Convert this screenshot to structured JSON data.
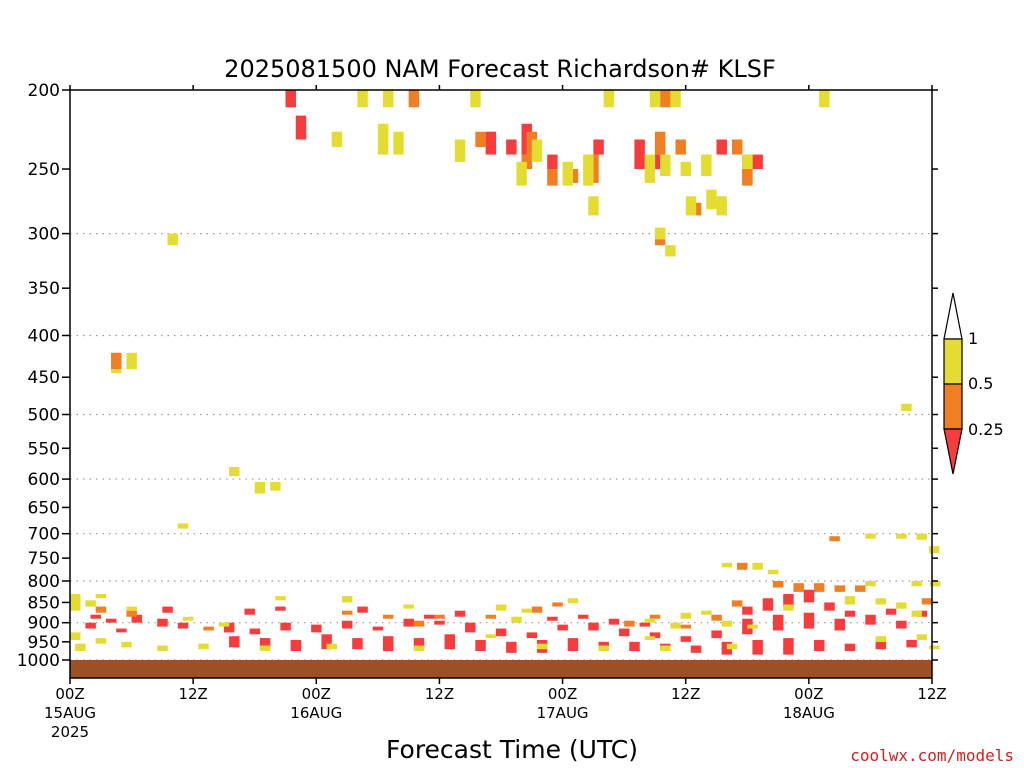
{
  "chart_data": {
    "type": "heatmap",
    "title": "2025081500 NAM Forecast Richardson# KLSF",
    "xlabel": "Forecast Time (UTC)",
    "ylabel": "",
    "xlim_hours": [
      0,
      84
    ],
    "ylim": [
      1000,
      200
    ],
    "y_ticks": [
      200,
      250,
      300,
      350,
      400,
      450,
      500,
      550,
      600,
      650,
      700,
      750,
      800,
      850,
      900,
      950,
      1000
    ],
    "x_ticks": [
      {
        "hour": 0,
        "lines": [
          "00Z",
          "15AUG",
          "2025"
        ]
      },
      {
        "hour": 12,
        "lines": [
          "12Z"
        ]
      },
      {
        "hour": 24,
        "lines": [
          "00Z",
          "16AUG"
        ]
      },
      {
        "hour": 36,
        "lines": [
          "12Z"
        ]
      },
      {
        "hour": 48,
        "lines": [
          "00Z",
          "17AUG"
        ]
      },
      {
        "hour": 60,
        "lines": [
          "12Z"
        ]
      },
      {
        "hour": 72,
        "lines": [
          "00Z",
          "18AUG"
        ]
      },
      {
        "hour": 84,
        "lines": [
          "12Z"
        ]
      }
    ],
    "dotted_gridlines_hpa": [
      300,
      400,
      500,
      600,
      700,
      800,
      900,
      1000
    ],
    "legend": {
      "placement": "right",
      "levels": [
        "0.25",
        "0.5",
        "1"
      ],
      "colors": {
        "lt_025": "#f63c3c",
        "025_05": "#f07e22",
        "05_1": "#e5dc32"
      }
    },
    "ground_color": "#9b5123",
    "series": [
      {
        "range": "< 0.25",
        "color": "#f63c3c",
        "cells": [
          [
            21.5,
            200,
            210
          ],
          [
            22.5,
            215,
            230
          ],
          [
            44.5,
            220,
            240
          ],
          [
            41,
            225,
            240
          ],
          [
            43,
            230,
            240
          ],
          [
            47,
            240,
            250
          ],
          [
            51.5,
            230,
            240
          ],
          [
            55.5,
            230,
            250
          ],
          [
            57.5,
            240,
            250
          ],
          [
            63.5,
            230,
            240
          ],
          [
            67,
            240,
            250
          ],
          [
            9.5,
            860,
            875
          ],
          [
            2.5,
            880,
            890
          ],
          [
            4,
            890,
            900
          ],
          [
            6.5,
            880,
            900
          ],
          [
            2,
            900,
            915
          ],
          [
            5,
            915,
            925
          ],
          [
            9,
            890,
            910
          ],
          [
            11,
            900,
            915
          ],
          [
            15.5,
            900,
            925
          ],
          [
            16,
            935,
            965
          ],
          [
            19,
            940,
            970
          ],
          [
            22,
            945,
            975
          ],
          [
            25,
            930,
            970
          ],
          [
            28,
            940,
            970
          ],
          [
            31,
            935,
            975
          ],
          [
            34,
            940,
            970
          ],
          [
            37,
            930,
            970
          ],
          [
            40,
            945,
            975
          ],
          [
            43,
            950,
            980
          ],
          [
            46,
            945,
            980
          ],
          [
            49,
            940,
            975
          ],
          [
            52,
            950,
            975
          ],
          [
            55,
            950,
            975
          ],
          [
            58,
            955,
            975
          ],
          [
            61,
            960,
            980
          ],
          [
            64,
            950,
            985
          ],
          [
            67,
            945,
            985
          ],
          [
            70,
            940,
            985
          ],
          [
            73,
            945,
            975
          ],
          [
            76,
            955,
            975
          ],
          [
            79,
            950,
            970
          ],
          [
            82,
            945,
            965
          ],
          [
            18,
            915,
            930
          ],
          [
            21,
            900,
            920
          ],
          [
            24,
            905,
            925
          ],
          [
            27,
            895,
            915
          ],
          [
            30,
            910,
            920
          ],
          [
            33,
            890,
            910
          ],
          [
            36,
            895,
            905
          ],
          [
            39,
            900,
            925
          ],
          [
            42,
            915,
            935
          ],
          [
            45,
            925,
            940
          ],
          [
            48,
            905,
            920
          ],
          [
            51,
            900,
            920
          ],
          [
            54,
            915,
            935
          ],
          [
            57,
            925,
            940
          ],
          [
            60,
            935,
            950
          ],
          [
            63,
            920,
            940
          ],
          [
            66,
            890,
            930
          ],
          [
            69,
            880,
            920
          ],
          [
            72,
            875,
            915
          ],
          [
            75,
            890,
            920
          ],
          [
            78,
            880,
            905
          ],
          [
            81,
            895,
            915
          ],
          [
            83,
            870,
            885
          ],
          [
            68,
            840,
            870
          ],
          [
            70,
            830,
            860
          ],
          [
            72,
            820,
            850
          ],
          [
            66,
            860,
            880
          ],
          [
            74,
            850,
            870
          ],
          [
            76,
            870,
            885
          ],
          [
            80,
            865,
            880
          ],
          [
            17.5,
            865,
            880
          ],
          [
            20.5,
            860,
            870
          ],
          [
            28.5,
            860,
            875
          ],
          [
            35,
            880,
            890
          ],
          [
            38,
            870,
            885
          ],
          [
            47,
            885,
            895
          ],
          [
            50,
            880,
            890
          ],
          [
            53,
            890,
            905
          ],
          [
            56,
            900,
            910
          ]
        ]
      },
      {
        "range": "0.25 – 0.5",
        "color": "#f07e22",
        "cells": [
          [
            33.5,
            200,
            210
          ],
          [
            58,
            200,
            210
          ],
          [
            57.5,
            225,
            240
          ],
          [
            59.5,
            230,
            240
          ],
          [
            40,
            225,
            235
          ],
          [
            45,
            225,
            240
          ],
          [
            44.5,
            240,
            250
          ],
          [
            49,
            250,
            260
          ],
          [
            47,
            250,
            262
          ],
          [
            51,
            240,
            260
          ],
          [
            65,
            230,
            240
          ],
          [
            66,
            240,
            260
          ],
          [
            66,
            250,
            262
          ],
          [
            61,
            275,
            285
          ],
          [
            57.5,
            300,
            310
          ],
          [
            4.5,
            420,
            440
          ],
          [
            74.5,
            705,
            715
          ],
          [
            65.5,
            760,
            775
          ],
          [
            69,
            800,
            815
          ],
          [
            71,
            805,
            825
          ],
          [
            73,
            805,
            825
          ],
          [
            75,
            810,
            825
          ],
          [
            77,
            810,
            825
          ],
          [
            83.5,
            840,
            855
          ],
          [
            63,
            880,
            895
          ],
          [
            41,
            880,
            890
          ],
          [
            45.5,
            860,
            875
          ],
          [
            36,
            880,
            890
          ],
          [
            34,
            895,
            910
          ],
          [
            54.5,
            895,
            910
          ],
          [
            57,
            880,
            890
          ],
          [
            60,
            905,
            915
          ],
          [
            47.5,
            850,
            860
          ],
          [
            65,
            845,
            860
          ],
          [
            6,
            870,
            885
          ],
          [
            3,
            860,
            875
          ],
          [
            13.5,
            910,
            920
          ],
          [
            27,
            870,
            880
          ],
          [
            31,
            880,
            890
          ]
        ]
      },
      {
        "range": "0.5 – 1",
        "color": "#e5dc32",
        "cells": [
          [
            28.5,
            200,
            210
          ],
          [
            31,
            200,
            210
          ],
          [
            39.5,
            200,
            210
          ],
          [
            52.5,
            200,
            210
          ],
          [
            57,
            200,
            210
          ],
          [
            59,
            200,
            210
          ],
          [
            73.5,
            200,
            210
          ],
          [
            26,
            225,
            235
          ],
          [
            30.5,
            220,
            240
          ],
          [
            32,
            225,
            240
          ],
          [
            45.5,
            230,
            245
          ],
          [
            38,
            230,
            245
          ],
          [
            44,
            245,
            262
          ],
          [
            48.5,
            245,
            262
          ],
          [
            50.5,
            240,
            262
          ],
          [
            56.5,
            240,
            260
          ],
          [
            58,
            240,
            255
          ],
          [
            60,
            245,
            255
          ],
          [
            62,
            240,
            255
          ],
          [
            66,
            240,
            250
          ],
          [
            51,
            270,
            285
          ],
          [
            60.5,
            270,
            285
          ],
          [
            62.5,
            265,
            280
          ],
          [
            63.5,
            270,
            285
          ],
          [
            10,
            300,
            310
          ],
          [
            57.5,
            295,
            305
          ],
          [
            58.5,
            310,
            320
          ],
          [
            6,
            420,
            440
          ],
          [
            4.5,
            440,
            445
          ],
          [
            81.5,
            485,
            495
          ],
          [
            16,
            580,
            595
          ],
          [
            18.5,
            605,
            625
          ],
          [
            20,
            605,
            620
          ],
          [
            11,
            680,
            690
          ],
          [
            78,
            700,
            710
          ],
          [
            81,
            700,
            710
          ],
          [
            83,
            700,
            712
          ],
          [
            84.2,
            725,
            740
          ],
          [
            64,
            760,
            770
          ],
          [
            67,
            760,
            775
          ],
          [
            68.5,
            775,
            785
          ],
          [
            78,
            800,
            812
          ],
          [
            82.5,
            800,
            812
          ],
          [
            84.3,
            800,
            812
          ],
          [
            0.5,
            830,
            870
          ],
          [
            2,
            845,
            860
          ],
          [
            3,
            830,
            840
          ],
          [
            6,
            860,
            870
          ],
          [
            11.5,
            885,
            895
          ],
          [
            20.5,
            835,
            845
          ],
          [
            27,
            835,
            850
          ],
          [
            33,
            855,
            865
          ],
          [
            43.5,
            885,
            900
          ],
          [
            44.5,
            865,
            875
          ],
          [
            49,
            840,
            852
          ],
          [
            42,
            855,
            870
          ],
          [
            56.5,
            890,
            900
          ],
          [
            59,
            900,
            915
          ],
          [
            60,
            875,
            890
          ],
          [
            62,
            870,
            880
          ],
          [
            64,
            895,
            910
          ],
          [
            66.5,
            905,
            915
          ],
          [
            70,
            855,
            870
          ],
          [
            76,
            835,
            855
          ],
          [
            79,
            840,
            855
          ],
          [
            81,
            850,
            865
          ],
          [
            82.5,
            870,
            885
          ],
          [
            0.5,
            925,
            945
          ],
          [
            1,
            955,
            975
          ],
          [
            3,
            940,
            955
          ],
          [
            5.5,
            950,
            965
          ],
          [
            9,
            960,
            975
          ],
          [
            13,
            955,
            970
          ],
          [
            19,
            960,
            975
          ],
          [
            25.5,
            955,
            970
          ],
          [
            34,
            960,
            975
          ],
          [
            46,
            955,
            970
          ],
          [
            52,
            960,
            975
          ],
          [
            58,
            960,
            975
          ],
          [
            64.5,
            955,
            970
          ],
          [
            79,
            935,
            950
          ],
          [
            83,
            930,
            945
          ],
          [
            84.2,
            960,
            970
          ],
          [
            56.5,
            935,
            945
          ],
          [
            41,
            930,
            940
          ],
          [
            15,
            900,
            910
          ]
        ]
      }
    ]
  },
  "footer": {
    "credit": "coolwx.com/models"
  }
}
